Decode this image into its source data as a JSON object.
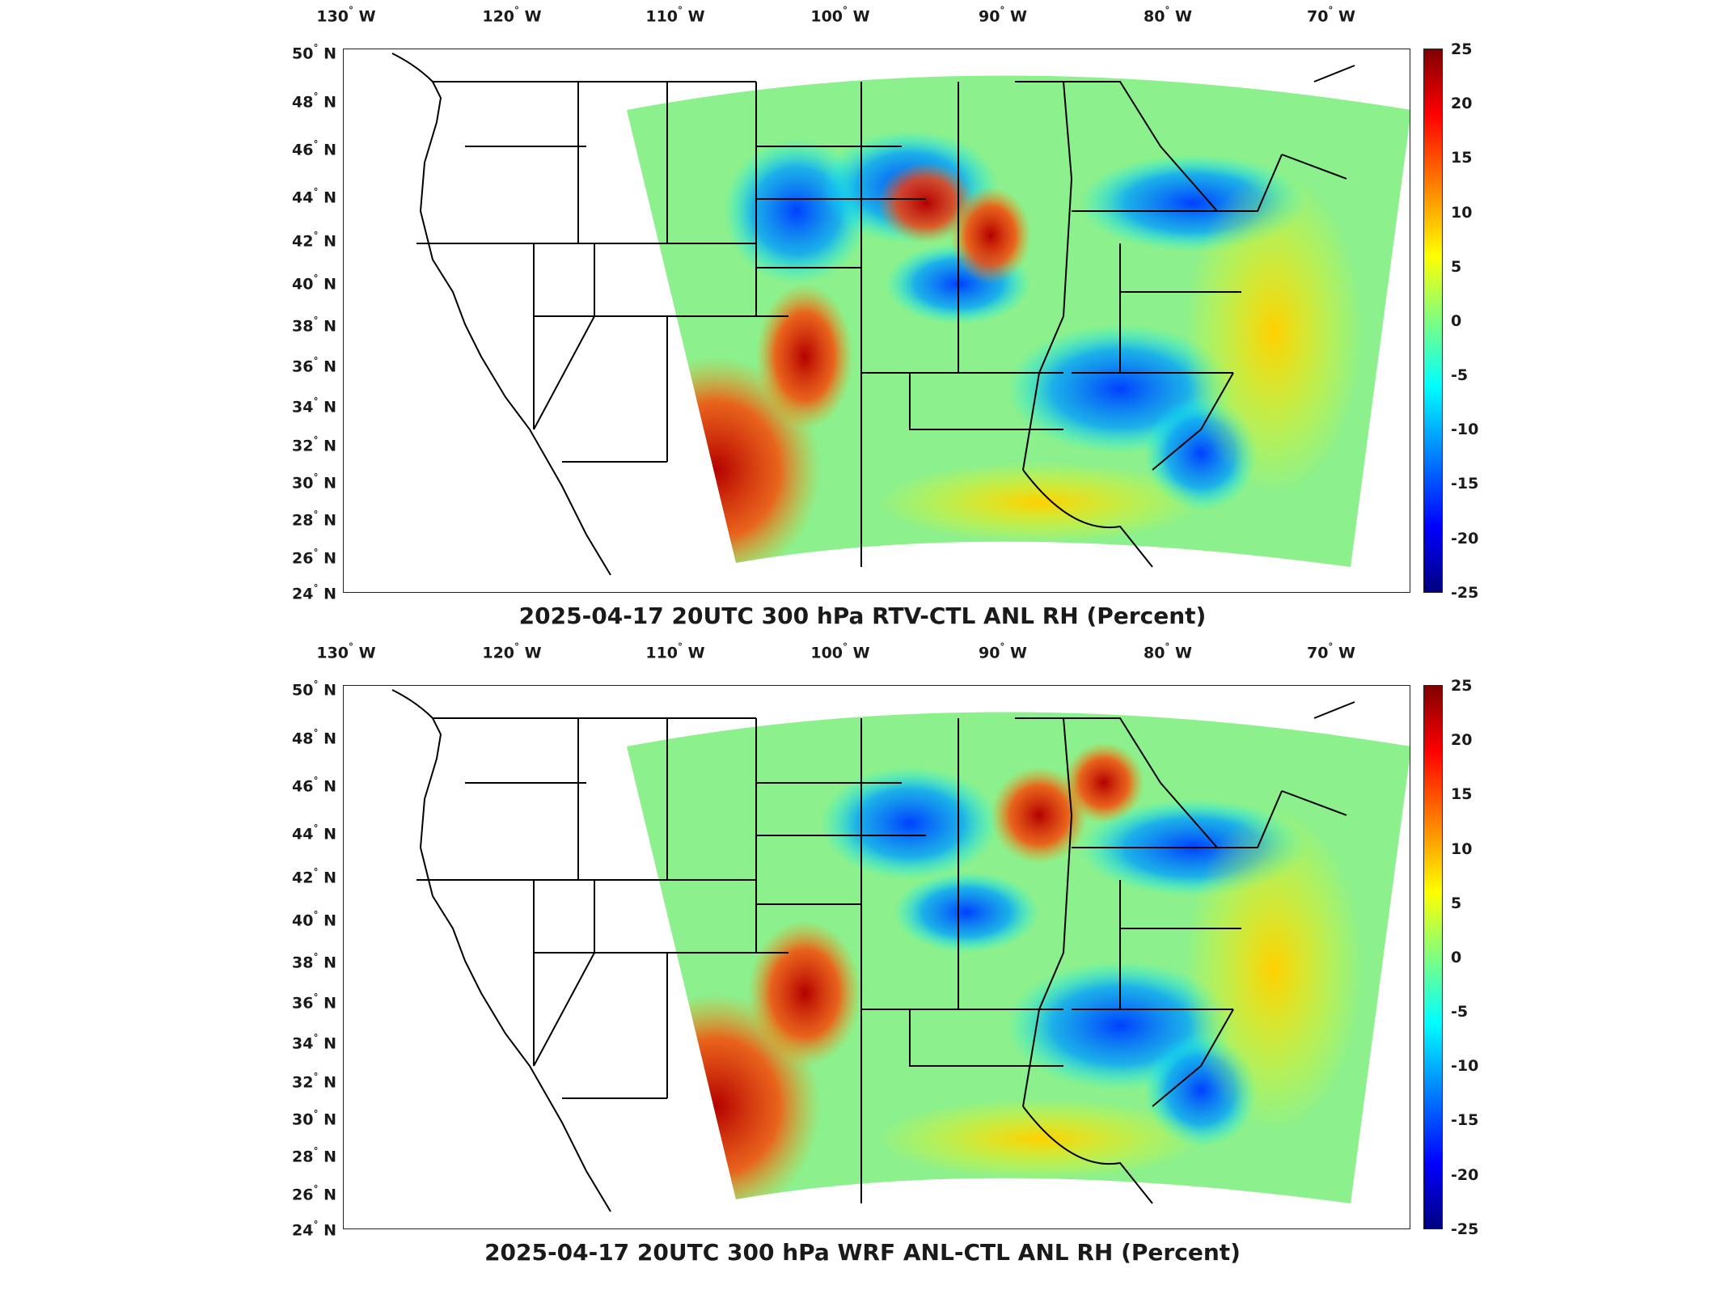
{
  "panels": [
    {
      "title": "2025-04-17 20UTC 300 hPa RTV-CTL ANL RH (Percent)",
      "lon_labels": [
        "130",
        "120",
        "110",
        "100",
        "90",
        "80",
        "70"
      ],
      "lon_hemisphere": "W",
      "lat_labels": [
        "50",
        "48",
        "46",
        "44",
        "42",
        "40",
        "38",
        "36",
        "34",
        "32",
        "30",
        "28",
        "26",
        "24"
      ],
      "lat_hemisphere": "N",
      "colorbar_ticks": [
        "25",
        "20",
        "15",
        "10",
        "5",
        "0",
        "-5",
        "-10",
        "-15",
        "-20",
        "-25"
      ]
    },
    {
      "title": "2025-04-17 20UTC 300 hPa WRF ANL-CTL ANL RH (Percent)",
      "lon_labels": [
        "130",
        "120",
        "110",
        "100",
        "90",
        "80",
        "70"
      ],
      "lon_hemisphere": "W",
      "lat_labels": [
        "50",
        "48",
        "46",
        "44",
        "42",
        "40",
        "38",
        "36",
        "34",
        "32",
        "30",
        "28",
        "26",
        "24"
      ],
      "lat_hemisphere": "N",
      "colorbar_ticks": [
        "25",
        "20",
        "15",
        "10",
        "5",
        "0",
        "-5",
        "-10",
        "-15",
        "-20",
        "-25"
      ]
    }
  ],
  "colormap": [
    "#00007f",
    "#0000ff",
    "#007fff",
    "#00ffff",
    "#7fff7f",
    "#ffff00",
    "#ff7f00",
    "#ff0000",
    "#7f0000"
  ],
  "colorbar_range": [
    -25,
    25
  ],
  "map_extent": {
    "lon": [
      -132,
      -66
    ],
    "lat": [
      24,
      50
    ]
  }
}
